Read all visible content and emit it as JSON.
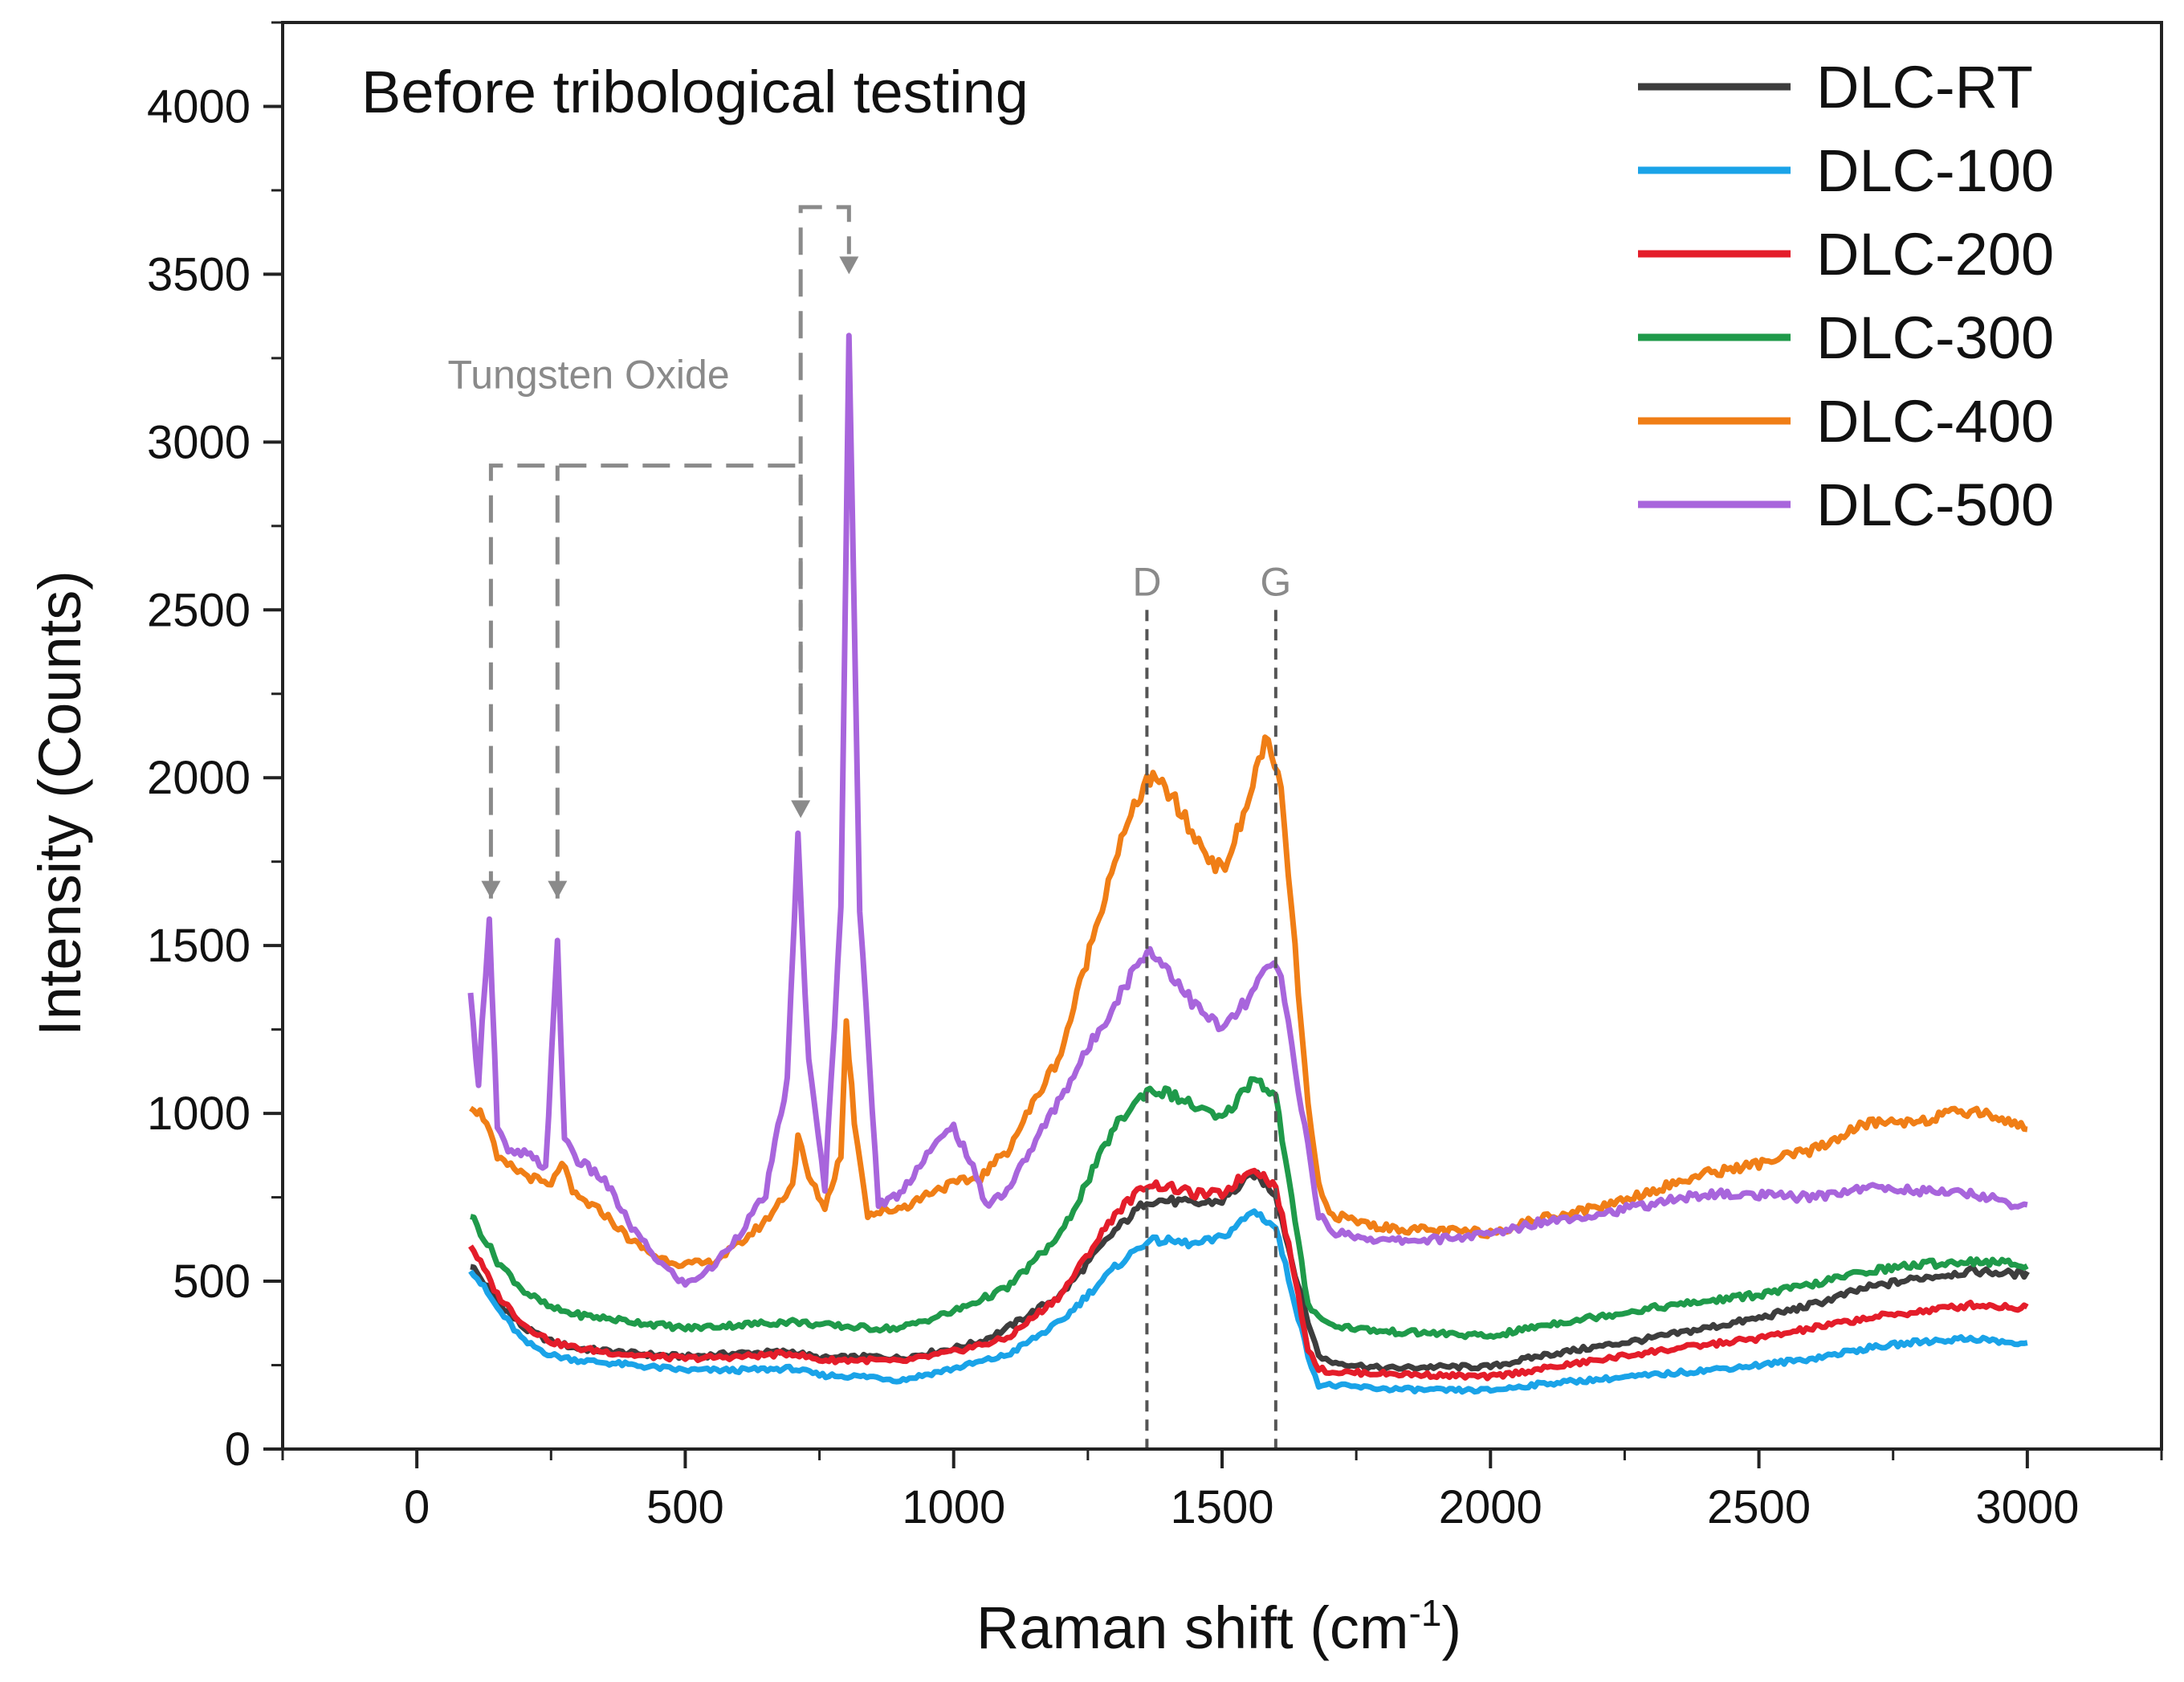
{
  "chart_data": {
    "type": "line",
    "title": "Before tribological testing",
    "xlabel": "Raman shift (cm",
    "xlabel_sup": "-1",
    "xlabel_close": ")",
    "ylabel": "Intensity (Counts)",
    "xlim": [
      -250,
      3250
    ],
    "ylim": [
      0,
      4250
    ],
    "xticks": [
      0,
      500,
      1000,
      1500,
      2000,
      2500,
      3000
    ],
    "yticks": [
      0,
      500,
      1000,
      1500,
      2000,
      2500,
      3000,
      3500,
      4000
    ],
    "legend_position": "top-right",
    "series": [
      {
        "name": "DLC-RT",
        "color": "#3d3d3d",
        "points": [
          [
            100,
            550
          ],
          [
            150,
            440
          ],
          [
            200,
            360
          ],
          [
            250,
            320
          ],
          [
            300,
            300
          ],
          [
            400,
            285
          ],
          [
            500,
            275
          ],
          [
            600,
            285
          ],
          [
            700,
            290
          ],
          [
            750,
            270
          ],
          [
            850,
            275
          ],
          [
            900,
            270
          ],
          [
            1000,
            300
          ],
          [
            1050,
            320
          ],
          [
            1100,
            360
          ],
          [
            1200,
            460
          ],
          [
            1300,
            650
          ],
          [
            1360,
            740
          ],
          [
            1400,
            740
          ],
          [
            1450,
            730
          ],
          [
            1500,
            740
          ],
          [
            1560,
            820
          ],
          [
            1600,
            760
          ],
          [
            1630,
            560
          ],
          [
            1660,
            380
          ],
          [
            1680,
            280
          ],
          [
            1700,
            260
          ],
          [
            1800,
            240
          ],
          [
            1900,
            245
          ],
          [
            2000,
            245
          ],
          [
            2100,
            280
          ],
          [
            2300,
            330
          ],
          [
            2500,
            390
          ],
          [
            2600,
            430
          ],
          [
            2700,
            480
          ],
          [
            2800,
            510
          ],
          [
            2900,
            530
          ],
          [
            3000,
            520
          ]
        ]
      },
      {
        "name": "DLC-100",
        "color": "#1aa3e8",
        "points": [
          [
            100,
            540
          ],
          [
            150,
            420
          ],
          [
            200,
            320
          ],
          [
            250,
            280
          ],
          [
            300,
            265
          ],
          [
            400,
            250
          ],
          [
            500,
            235
          ],
          [
            600,
            235
          ],
          [
            700,
            240
          ],
          [
            750,
            220
          ],
          [
            850,
            215
          ],
          [
            900,
            205
          ],
          [
            1000,
            240
          ],
          [
            1100,
            280
          ],
          [
            1200,
            380
          ],
          [
            1300,
            540
          ],
          [
            1360,
            620
          ],
          [
            1400,
            620
          ],
          [
            1450,
            610
          ],
          [
            1500,
            630
          ],
          [
            1560,
            710
          ],
          [
            1600,
            660
          ],
          [
            1630,
            470
          ],
          [
            1660,
            280
          ],
          [
            1680,
            190
          ],
          [
            1700,
            190
          ],
          [
            1800,
            180
          ],
          [
            1900,
            175
          ],
          [
            2000,
            175
          ],
          [
            2100,
            195
          ],
          [
            2300,
            220
          ],
          [
            2500,
            250
          ],
          [
            2600,
            270
          ],
          [
            2700,
            300
          ],
          [
            2800,
            320
          ],
          [
            2900,
            330
          ],
          [
            3000,
            310
          ]
        ]
      },
      {
        "name": "DLC-200",
        "color": "#e41d2a",
        "points": [
          [
            100,
            610
          ],
          [
            150,
            460
          ],
          [
            200,
            370
          ],
          [
            250,
            320
          ],
          [
            300,
            300
          ],
          [
            400,
            280
          ],
          [
            500,
            270
          ],
          [
            600,
            275
          ],
          [
            700,
            285
          ],
          [
            750,
            265
          ],
          [
            850,
            265
          ],
          [
            900,
            260
          ],
          [
            1000,
            290
          ],
          [
            1100,
            330
          ],
          [
            1200,
            460
          ],
          [
            1300,
            700
          ],
          [
            1360,
            790
          ],
          [
            1400,
            780
          ],
          [
            1450,
            760
          ],
          [
            1500,
            760
          ],
          [
            1560,
            840
          ],
          [
            1600,
            780
          ],
          [
            1630,
            560
          ],
          [
            1660,
            300
          ],
          [
            1680,
            240
          ],
          [
            1700,
            230
          ],
          [
            1800,
            225
          ],
          [
            1900,
            220
          ],
          [
            2000,
            215
          ],
          [
            2100,
            240
          ],
          [
            2300,
            290
          ],
          [
            2500,
            330
          ],
          [
            2600,
            360
          ],
          [
            2700,
            390
          ],
          [
            2800,
            410
          ],
          [
            2900,
            430
          ],
          [
            3000,
            420
          ]
        ]
      },
      {
        "name": "DLC-300",
        "color": "#1f9a4a",
        "points": [
          [
            100,
            700
          ],
          [
            150,
            560
          ],
          [
            200,
            470
          ],
          [
            250,
            420
          ],
          [
            300,
            400
          ],
          [
            400,
            380
          ],
          [
            500,
            360
          ],
          [
            600,
            370
          ],
          [
            700,
            380
          ],
          [
            750,
            370
          ],
          [
            850,
            360
          ],
          [
            900,
            360
          ],
          [
            1000,
            410
          ],
          [
            1100,
            480
          ],
          [
            1200,
            640
          ],
          [
            1300,
            960
          ],
          [
            1360,
            1070
          ],
          [
            1400,
            1060
          ],
          [
            1450,
            1020
          ],
          [
            1500,
            980
          ],
          [
            1560,
            1110
          ],
          [
            1600,
            1050
          ],
          [
            1630,
            740
          ],
          [
            1660,
            430
          ],
          [
            1680,
            400
          ],
          [
            1700,
            370
          ],
          [
            1800,
            350
          ],
          [
            1900,
            345
          ],
          [
            2000,
            335
          ],
          [
            2100,
            370
          ],
          [
            2300,
            420
          ],
          [
            2500,
            460
          ],
          [
            2600,
            490
          ],
          [
            2700,
            530
          ],
          [
            2800,
            550
          ],
          [
            2900,
            560
          ],
          [
            3000,
            550
          ]
        ]
      },
      {
        "name": "DLC-400",
        "color": "#f07e16",
        "points": [
          [
            100,
            1030
          ],
          [
            130,
            980
          ],
          [
            150,
            860
          ],
          [
            200,
            820
          ],
          [
            250,
            780
          ],
          [
            270,
            860
          ],
          [
            290,
            760
          ],
          [
            350,
            700
          ],
          [
            400,
            620
          ],
          [
            450,
            570
          ],
          [
            500,
            550
          ],
          [
            550,
            555
          ],
          [
            600,
            610
          ],
          [
            650,
            680
          ],
          [
            700,
            790
          ],
          [
            710,
            930
          ],
          [
            730,
            810
          ],
          [
            760,
            720
          ],
          [
            790,
            880
          ],
          [
            800,
            1270
          ],
          [
            815,
            980
          ],
          [
            840,
            700
          ],
          [
            880,
            710
          ],
          [
            920,
            730
          ],
          [
            960,
            770
          ],
          [
            1000,
            790
          ],
          [
            1050,
            810
          ],
          [
            1100,
            890
          ],
          [
            1200,
            1180
          ],
          [
            1300,
            1760
          ],
          [
            1360,
            2000
          ],
          [
            1400,
            1960
          ],
          [
            1450,
            1820
          ],
          [
            1500,
            1720
          ],
          [
            1540,
            1880
          ],
          [
            1580,
            2120
          ],
          [
            1610,
            1960
          ],
          [
            1630,
            1600
          ],
          [
            1660,
            1020
          ],
          [
            1680,
            780
          ],
          [
            1700,
            700
          ],
          [
            1800,
            660
          ],
          [
            1900,
            650
          ],
          [
            2000,
            645
          ],
          [
            2100,
            690
          ],
          [
            2200,
            720
          ],
          [
            2400,
            820
          ],
          [
            2500,
            850
          ],
          [
            2600,
            890
          ],
          [
            2700,
            970
          ],
          [
            2800,
            980
          ],
          [
            2900,
            1010
          ],
          [
            3000,
            960
          ]
        ]
      },
      {
        "name": "DLC-500",
        "color": "#a865dc",
        "points": [
          [
            100,
            1340
          ],
          [
            115,
            1100
          ],
          [
            135,
            1590
          ],
          [
            150,
            960
          ],
          [
            170,
            880
          ],
          [
            200,
            880
          ],
          [
            240,
            840
          ],
          [
            262,
            1500
          ],
          [
            275,
            930
          ],
          [
            300,
            860
          ],
          [
            350,
            800
          ],
          [
            400,
            660
          ],
          [
            450,
            560
          ],
          [
            500,
            490
          ],
          [
            550,
            540
          ],
          [
            600,
            640
          ],
          [
            650,
            760
          ],
          [
            690,
            1100
          ],
          [
            710,
            1820
          ],
          [
            730,
            1150
          ],
          [
            760,
            780
          ],
          [
            790,
            1600
          ],
          [
            805,
            3350
          ],
          [
            825,
            1600
          ],
          [
            860,
            730
          ],
          [
            900,
            760
          ],
          [
            950,
            880
          ],
          [
            1000,
            960
          ],
          [
            1030,
            860
          ],
          [
            1060,
            730
          ],
          [
            1100,
            770
          ],
          [
            1200,
            1050
          ],
          [
            1300,
            1330
          ],
          [
            1360,
            1490
          ],
          [
            1400,
            1430
          ],
          [
            1450,
            1320
          ],
          [
            1500,
            1250
          ],
          [
            1550,
            1340
          ],
          [
            1590,
            1450
          ],
          [
            1610,
            1400
          ],
          [
            1630,
            1200
          ],
          [
            1660,
            900
          ],
          [
            1680,
            700
          ],
          [
            1700,
            650
          ],
          [
            1800,
            620
          ],
          [
            1900,
            625
          ],
          [
            2000,
            640
          ],
          [
            2100,
            680
          ],
          [
            2200,
            700
          ],
          [
            2300,
            730
          ],
          [
            2400,
            760
          ],
          [
            2500,
            755
          ],
          [
            2600,
            750
          ],
          [
            2700,
            780
          ],
          [
            2800,
            770
          ],
          [
            2900,
            760
          ],
          [
            3000,
            720
          ]
        ]
      }
    ],
    "annotations": {
      "tungsten_label": "Tungsten Oxide",
      "d_label": "D",
      "g_label": "G",
      "d_x": 1360,
      "g_x": 1600,
      "tungsten_peaks_x": [
        138,
        262,
        715,
        805
      ]
    }
  }
}
